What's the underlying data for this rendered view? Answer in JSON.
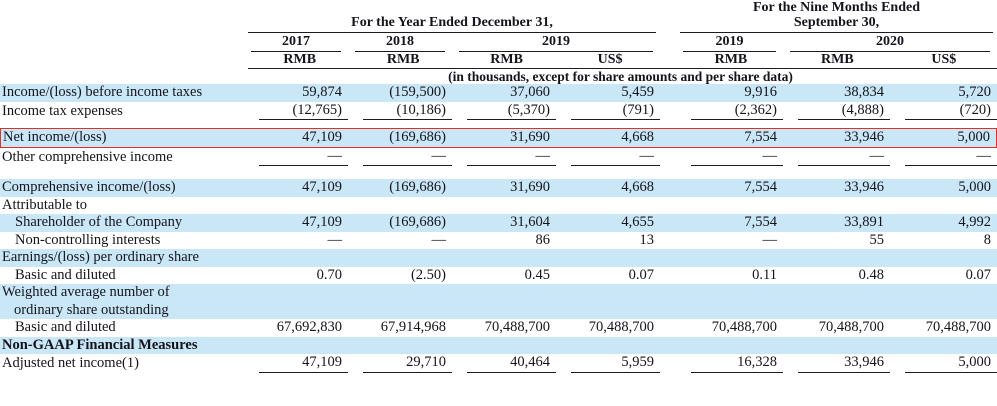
{
  "table": {
    "group_annual": {
      "label": "For the Year Ended December 31,"
    },
    "group_interim": {
      "line1": "For the Nine Months Ended",
      "line2": "September 30,"
    },
    "years": [
      "2017",
      "2018",
      "2019",
      "2019",
      "2020"
    ],
    "units": [
      "RMB",
      "RMB",
      "RMB",
      "US$",
      "RMB",
      "RMB",
      "US$"
    ],
    "note": "(in thousands, except for share amounts and per share data)",
    "rows": [
      {
        "label": "Income/(loss) before income taxes",
        "bg": "stripe",
        "values": [
          "59,874",
          "(159,500)",
          "37,060",
          "5,459",
          "9,916",
          "38,834",
          "5,720"
        ]
      },
      {
        "label": "Income tax expenses",
        "bg": "white",
        "underline": true,
        "values": [
          "(12,765)",
          "(10,186)",
          "(5,370)",
          "(791)",
          "(2,362)",
          "(4,888)",
          "(720)"
        ]
      },
      {
        "type": "spacer",
        "height": 8
      },
      {
        "label": "Net income/(loss)",
        "bg": "stripe",
        "highlight": true,
        "values": [
          "47,109",
          "(169,686)",
          "31,690",
          "4,668",
          "7,554",
          "33,946",
          "5,000"
        ]
      },
      {
        "label": "Other comprehensive income",
        "bg": "white",
        "underline": true,
        "values": [
          "—",
          "—",
          "—",
          "—",
          "—",
          "—",
          "—"
        ]
      },
      {
        "type": "spacer",
        "height": 13
      },
      {
        "label": "Comprehensive income/(loss)",
        "bg": "stripe",
        "values": [
          "47,109",
          "(169,686)",
          "31,690",
          "4,668",
          "7,554",
          "33,946",
          "5,000"
        ]
      },
      {
        "label": "Attributable to",
        "bg": "white",
        "values": []
      },
      {
        "label": "Shareholder of the Company",
        "indent": true,
        "bg": "stripe",
        "values": [
          "47,109",
          "(169,686)",
          "31,604",
          "4,655",
          "7,554",
          "33,891",
          "4,992"
        ]
      },
      {
        "label": "Non-controlling interests",
        "indent": true,
        "bg": "white",
        "values": [
          "—",
          "—",
          "86",
          "13",
          "—",
          "55",
          "8"
        ]
      },
      {
        "label": "Earnings/(loss) per ordinary share",
        "bg": "stripe",
        "values": []
      },
      {
        "label": "Basic and diluted",
        "indent": true,
        "bg": "white",
        "values": [
          "0.70",
          "(2.50)",
          "0.45",
          "0.07",
          "0.11",
          "0.48",
          "0.07"
        ]
      },
      {
        "label": "Weighted average number of",
        "label2": "ordinary share outstanding",
        "bg": "stripe",
        "values": []
      },
      {
        "label": "Basic and diluted",
        "indent": true,
        "bg": "white",
        "values": [
          "67,692,830",
          "67,914,968",
          "70,488,700",
          "70,488,700",
          "70,488,700",
          "70,488,700",
          "70,488,700"
        ]
      },
      {
        "label": "Non-GAAP Financial Measures",
        "bold": true,
        "bg": "stripe",
        "values": []
      },
      {
        "label": "Adjusted net income(1)",
        "bg": "white",
        "underline": true,
        "values": [
          "47,109",
          "29,710",
          "40,464",
          "5,959",
          "16,328",
          "33,946",
          "5,000"
        ]
      }
    ]
  },
  "colors": {
    "stripe_blue": "#cae7f8",
    "highlight_red": "#dd3327",
    "text": "#14141a",
    "rule": "#1c1c1c"
  }
}
